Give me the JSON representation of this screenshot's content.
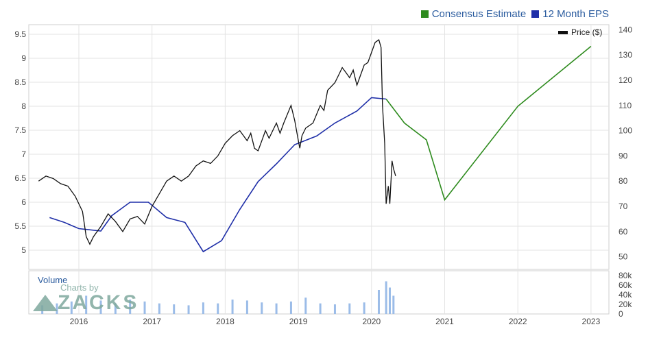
{
  "legend": {
    "consensus_label": "Consensus Estimate",
    "consensus_color": "#2e8b1e",
    "eps_label": "12 Month EPS",
    "eps_color": "#1f2fa8"
  },
  "price_label": "Price ($)",
  "volume_label": "Volume",
  "watermark": {
    "sub": "Charts by",
    "brand": "ZACKS"
  },
  "chart_data": {
    "type": "line",
    "x_ticks": [
      "2016",
      "2017",
      "2018",
      "2019",
      "2020",
      "2021",
      "2022",
      "2023"
    ],
    "left_axis": {
      "ticks": [
        "9.5",
        "9",
        "8.5",
        "8",
        "7.5",
        "7",
        "6.5",
        "6",
        "5.5",
        "5"
      ],
      "range": [
        4.6,
        9.7
      ]
    },
    "right_axis": {
      "ticks": [
        "140",
        "130",
        "120",
        "110",
        "100",
        "90",
        "80",
        "70",
        "60",
        "50"
      ],
      "range": [
        45,
        142
      ]
    },
    "volume_axis": {
      "ticks": [
        "80k",
        "60k",
        "40k",
        "20k",
        "0"
      ],
      "range": [
        0,
        90000
      ]
    },
    "series": [
      {
        "name": "12 Month EPS",
        "color": "#1f2fa8",
        "points": [
          [
            2015.6,
            5.68
          ],
          [
            2015.8,
            5.58
          ],
          [
            2016.0,
            5.45
          ],
          [
            2016.3,
            5.4
          ],
          [
            2016.45,
            5.72
          ],
          [
            2016.7,
            6.0
          ],
          [
            2016.95,
            6.0
          ],
          [
            2017.2,
            5.68
          ],
          [
            2017.45,
            5.58
          ],
          [
            2017.7,
            4.97
          ],
          [
            2017.95,
            5.2
          ],
          [
            2018.2,
            5.85
          ],
          [
            2018.45,
            6.43
          ],
          [
            2018.7,
            6.8
          ],
          [
            2018.95,
            7.2
          ],
          [
            2019.25,
            7.38
          ],
          [
            2019.5,
            7.65
          ],
          [
            2019.8,
            7.9
          ],
          [
            2020.0,
            8.18
          ],
          [
            2020.2,
            8.15
          ]
        ]
      },
      {
        "name": "Consensus Estimate",
        "color": "#2e8b1e",
        "points": [
          [
            2020.2,
            8.15
          ],
          [
            2020.45,
            7.65
          ],
          [
            2020.75,
            7.3
          ],
          [
            2021.0,
            6.05
          ],
          [
            2022.0,
            8.0
          ],
          [
            2023.0,
            9.25
          ]
        ]
      },
      {
        "name": "Price ($)",
        "color": "#111111",
        "axis": "right",
        "points": [
          [
            2015.45,
            80
          ],
          [
            2015.55,
            82
          ],
          [
            2015.65,
            81
          ],
          [
            2015.75,
            79
          ],
          [
            2015.85,
            78
          ],
          [
            2015.95,
            74
          ],
          [
            2016.05,
            68
          ],
          [
            2016.1,
            58
          ],
          [
            2016.15,
            55
          ],
          [
            2016.2,
            58
          ],
          [
            2016.3,
            62
          ],
          [
            2016.4,
            67
          ],
          [
            2016.5,
            64
          ],
          [
            2016.6,
            60
          ],
          [
            2016.7,
            65
          ],
          [
            2016.8,
            66
          ],
          [
            2016.9,
            63
          ],
          [
            2017.0,
            70
          ],
          [
            2017.1,
            75
          ],
          [
            2017.2,
            80
          ],
          [
            2017.3,
            82
          ],
          [
            2017.4,
            80
          ],
          [
            2017.5,
            82
          ],
          [
            2017.6,
            86
          ],
          [
            2017.7,
            88
          ],
          [
            2017.8,
            87
          ],
          [
            2017.9,
            90
          ],
          [
            2018.0,
            95
          ],
          [
            2018.1,
            98
          ],
          [
            2018.2,
            100
          ],
          [
            2018.3,
            96
          ],
          [
            2018.35,
            99
          ],
          [
            2018.4,
            93
          ],
          [
            2018.45,
            92
          ],
          [
            2018.5,
            96
          ],
          [
            2018.55,
            100
          ],
          [
            2018.6,
            97
          ],
          [
            2018.7,
            103
          ],
          [
            2018.75,
            99
          ],
          [
            2018.8,
            103
          ],
          [
            2018.9,
            110
          ],
          [
            2018.95,
            104
          ],
          [
            2019.0,
            96
          ],
          [
            2019.02,
            93
          ],
          [
            2019.05,
            98
          ],
          [
            2019.1,
            101
          ],
          [
            2019.2,
            103
          ],
          [
            2019.3,
            110
          ],
          [
            2019.35,
            108
          ],
          [
            2019.4,
            116
          ],
          [
            2019.5,
            119
          ],
          [
            2019.55,
            122
          ],
          [
            2019.6,
            125
          ],
          [
            2019.65,
            123
          ],
          [
            2019.7,
            121
          ],
          [
            2019.75,
            124
          ],
          [
            2019.8,
            118
          ],
          [
            2019.85,
            122
          ],
          [
            2019.9,
            126
          ],
          [
            2019.95,
            127
          ],
          [
            2020.0,
            131
          ],
          [
            2020.05,
            135
          ],
          [
            2020.1,
            136
          ],
          [
            2020.13,
            133
          ],
          [
            2020.15,
            110
          ],
          [
            2020.18,
            95
          ],
          [
            2020.2,
            71
          ],
          [
            2020.23,
            78
          ],
          [
            2020.25,
            71
          ],
          [
            2020.28,
            88
          ],
          [
            2020.3,
            85
          ],
          [
            2020.33,
            82
          ]
        ]
      }
    ],
    "volume_bars": [
      [
        2015.5,
        18000
      ],
      [
        2015.7,
        22000
      ],
      [
        2015.9,
        26000
      ],
      [
        2016.1,
        38000
      ],
      [
        2016.3,
        28000
      ],
      [
        2016.5,
        22000
      ],
      [
        2016.7,
        30000
      ],
      [
        2016.9,
        26000
      ],
      [
        2017.1,
        22000
      ],
      [
        2017.3,
        20000
      ],
      [
        2017.5,
        18000
      ],
      [
        2017.7,
        24000
      ],
      [
        2017.9,
        22000
      ],
      [
        2018.1,
        30000
      ],
      [
        2018.3,
        28000
      ],
      [
        2018.5,
        24000
      ],
      [
        2018.7,
        22000
      ],
      [
        2018.9,
        26000
      ],
      [
        2019.1,
        34000
      ],
      [
        2019.3,
        22000
      ],
      [
        2019.5,
        20000
      ],
      [
        2019.7,
        22000
      ],
      [
        2019.9,
        24000
      ],
      [
        2020.1,
        50000
      ],
      [
        2020.2,
        68000
      ],
      [
        2020.25,
        55000
      ],
      [
        2020.3,
        38000
      ]
    ]
  }
}
